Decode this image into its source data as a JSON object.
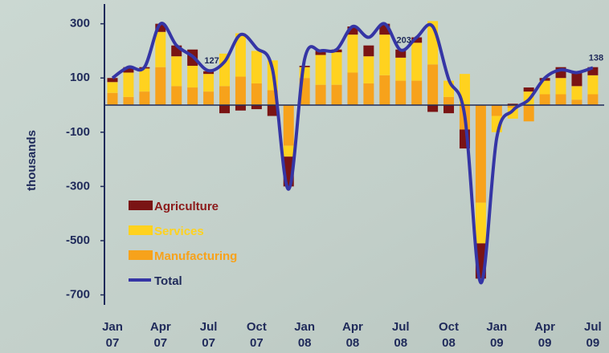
{
  "chart_data": {
    "type": "bar",
    "stacked": true,
    "y_label": "thousands",
    "categories": [
      "Jan 07",
      null,
      null,
      "Apr 07",
      null,
      null,
      "Jul 07",
      null,
      null,
      "Oct 07",
      null,
      null,
      "Jan 08",
      null,
      null,
      "Apr 08",
      null,
      null,
      "Jul 08",
      null,
      null,
      "Oct 08",
      null,
      null,
      "Jan 09",
      null,
      null,
      "Apr 09",
      null,
      null,
      "Jul 09"
    ],
    "series": [
      {
        "name": "Manufacturing",
        "color": "#f7a21b",
        "values": [
          45,
          30,
          50,
          140,
          70,
          65,
          50,
          70,
          105,
          80,
          55,
          -150,
          100,
          75,
          75,
          120,
          80,
          110,
          90,
          90,
          150,
          30,
          -90,
          -360,
          -40,
          -10,
          -60,
          40,
          40,
          20,
          40
        ]
      },
      {
        "name": "Services",
        "color": "#ffd21f",
        "values": [
          40,
          90,
          85,
          130,
          110,
          80,
          65,
          120,
          160,
          120,
          110,
          -40,
          40,
          110,
          120,
          140,
          100,
          150,
          85,
          140,
          160,
          60,
          115,
          -150,
          -60,
          -40,
          50,
          50,
          60,
          50,
          70
        ]
      },
      {
        "name": "Agriculture",
        "color": "#7a1414",
        "values": [
          15,
          20,
          5,
          30,
          40,
          60,
          10,
          -30,
          -20,
          -15,
          -40,
          -110,
          5,
          15,
          10,
          30,
          40,
          40,
          30,
          20,
          -25,
          -30,
          -70,
          -130,
          0,
          5,
          15,
          10,
          40,
          50,
          30
        ]
      },
      {
        "name": "Total",
        "type": "line",
        "color": "#3535a5",
        "values": [
          100,
          140,
          140,
          300,
          220,
          180,
          127,
          160,
          260,
          210,
          130,
          -310,
          170,
          200,
          205,
          290,
          250,
          300,
          203,
          250,
          290,
          95,
          -40,
          -655,
          -120,
          -20,
          20,
          100,
          130,
          120,
          138
        ],
        "value_labels": [
          null,
          null,
          null,
          null,
          null,
          null,
          "127",
          null,
          null,
          null,
          null,
          null,
          null,
          null,
          null,
          null,
          null,
          null,
          "203",
          null,
          null,
          null,
          null,
          null,
          null,
          null,
          null,
          null,
          null,
          null,
          "138"
        ]
      }
    ],
    "legend_order": [
      "Agriculture",
      "Services",
      "Manufacturing",
      "Total"
    ],
    "legend": "lower left",
    "ylim": [
      -730,
      380
    ],
    "yticks": [
      300,
      100,
      -100,
      -300,
      -500,
      -700
    ]
  }
}
